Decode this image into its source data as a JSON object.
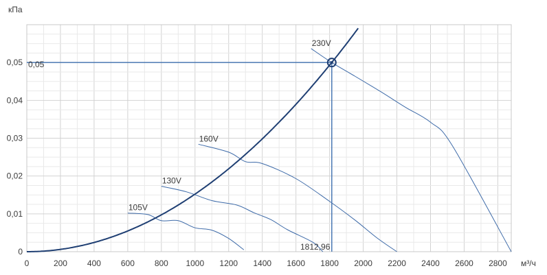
{
  "chart_data": {
    "type": "line",
    "xlabel": "м³/ч",
    "ylabel": "кПа",
    "xlim": [
      0,
      2880
    ],
    "ylim": [
      0,
      0.06
    ],
    "x_ticks": [
      0,
      200,
      400,
      600,
      800,
      1000,
      1200,
      1400,
      1600,
      1800,
      2000,
      2200,
      2400,
      2600,
      2800
    ],
    "x_tick_labels": [
      "0",
      "200",
      "400",
      "600",
      "800",
      "1000",
      "1200",
      "1400",
      "1600",
      "1800",
      "2000",
      "2200",
      "2400",
      "2600",
      "2800"
    ],
    "y_ticks": [
      0,
      0.01,
      0.02,
      0.03,
      0.04,
      0.05
    ],
    "y_tick_labels": [
      "0",
      "0,01",
      "0,02",
      "0,03",
      "0,04",
      "0,05"
    ],
    "grid": true,
    "colors": {
      "system_curve": "#1f3f73",
      "fan_curves": "#3d6aa8",
      "operating_lines": "#4a78b3",
      "grid": "#d8d8d8",
      "axis_text": "#3a3a3a"
    },
    "series": [
      {
        "name": "230V",
        "x": [
          1690,
          1812.96,
          1950,
          2100,
          2250,
          2400,
          2530,
          2880
        ],
        "y": [
          0.0537,
          0.05,
          0.0464,
          0.0424,
          0.0382,
          0.0342,
          0.028,
          0
        ]
      },
      {
        "name": "160V",
        "x": [
          1020,
          1200,
          1300,
          1400,
          1600,
          1800,
          1950,
          2080,
          2200
        ],
        "y": [
          0.0284,
          0.0263,
          0.0238,
          0.0233,
          0.0193,
          0.0133,
          0.0084,
          0.0037,
          0
        ]
      },
      {
        "name": "130V",
        "x": [
          800,
          950,
          1100,
          1250,
          1350,
          1450,
          1550,
          1700,
          1760
        ],
        "y": [
          0.0173,
          0.0158,
          0.0135,
          0.0123,
          0.0103,
          0.0085,
          0.0058,
          0.0025,
          0
        ]
      },
      {
        "name": "105V",
        "x": [
          600,
          720,
          800,
          900,
          1000,
          1100,
          1200,
          1290
        ],
        "y": [
          0.0102,
          0.0098,
          0.0082,
          0.0082,
          0.0063,
          0.0057,
          0.0035,
          0.0005
        ]
      },
      {
        "curve": "quadratic",
        "coefficient": 1.5217e-08,
        "x_range": [
          0,
          1970
        ]
      }
    ],
    "operating_point": {
      "x": 1812.96,
      "y": 0.05
    },
    "annotations": {
      "x_value": "1812,96",
      "y_value": "0,05"
    }
  }
}
